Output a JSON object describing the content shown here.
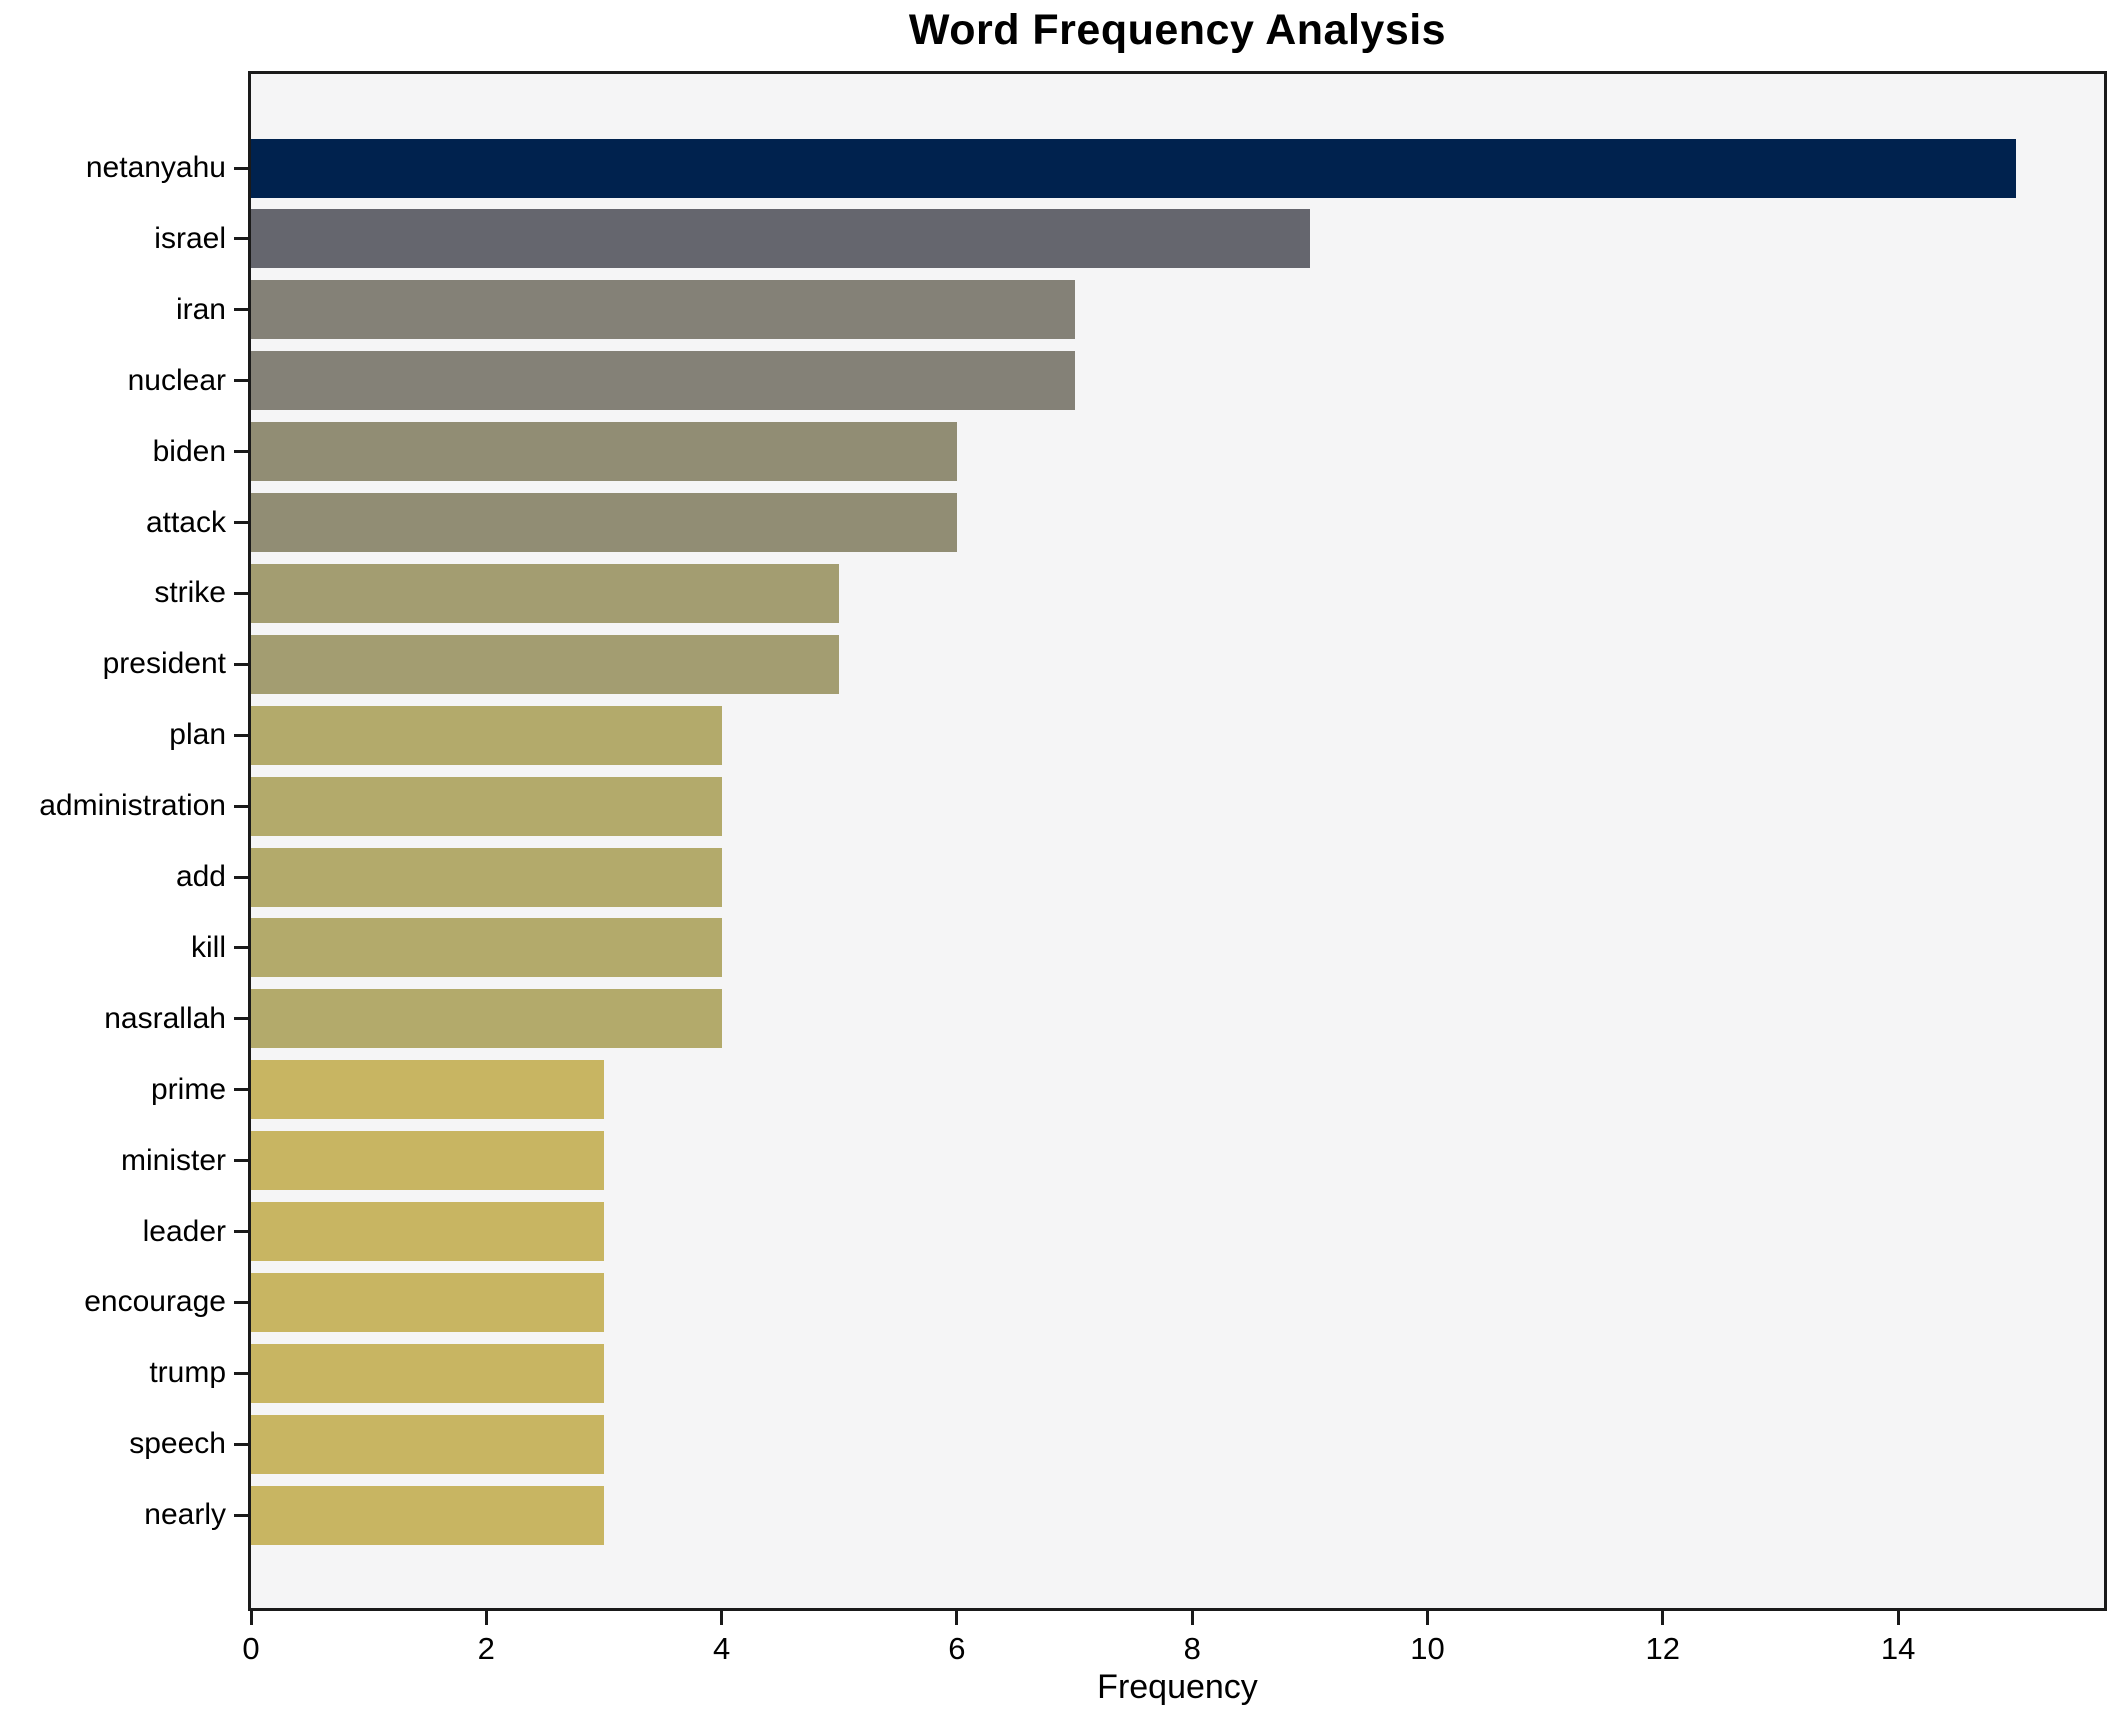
{
  "title": "Word Frequency Analysis",
  "chart_data": {
    "type": "bar",
    "orientation": "horizontal",
    "title": "Word Frequency Analysis",
    "xlabel": "Frequency",
    "ylabel": "",
    "xlim": [
      0,
      15.75
    ],
    "xticks": [
      0,
      2,
      4,
      6,
      8,
      10,
      12,
      14
    ],
    "grid": false,
    "legend": false,
    "figure_background": "#ffffff",
    "plot_background": "#f5f5f6",
    "spine_color": "#1a1a1a",
    "categories": [
      "netanyahu",
      "israel",
      "iran",
      "nuclear",
      "biden",
      "attack",
      "strike",
      "president",
      "plan",
      "administration",
      "add",
      "kill",
      "nasrallah",
      "prime",
      "minister",
      "leader",
      "encourage",
      "trump",
      "speech",
      "nearly"
    ],
    "values": [
      15,
      9,
      7,
      7,
      6,
      6,
      5,
      5,
      4,
      4,
      4,
      4,
      4,
      3,
      3,
      3,
      3,
      3,
      3,
      3
    ],
    "bar_colors": [
      "#00224e",
      "#65666e",
      "#848177",
      "#848177",
      "#918d74",
      "#918d74",
      "#a39d71",
      "#a39d71",
      "#b3aa6b",
      "#b3aa6b",
      "#b3aa6b",
      "#b3aa6b",
      "#b3aa6b",
      "#c8b562",
      "#c8b562",
      "#c8b562",
      "#c8b562",
      "#c8b562",
      "#c8b562",
      "#c8b562"
    ]
  }
}
